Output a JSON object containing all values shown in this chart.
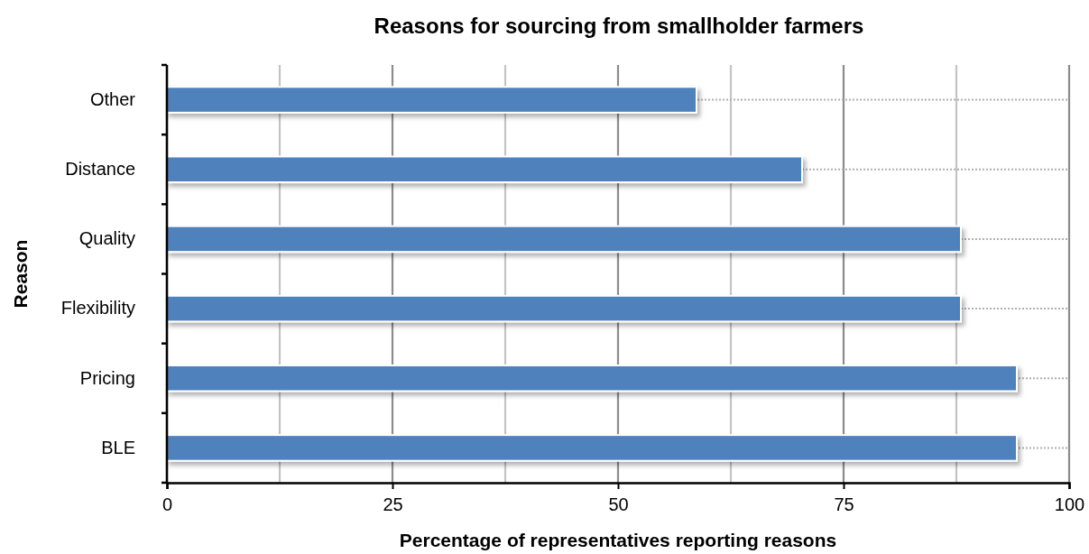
{
  "chart_data": {
    "type": "bar",
    "orientation": "horizontal",
    "title": "Reasons for sourcing from smallholder farmers",
    "xlabel": "Percentage of representatives reporting reasons",
    "ylabel": "Reason",
    "categories": [
      "Other",
      "Distance",
      "Quality",
      "Flexibility",
      "Pricing",
      "BLE"
    ],
    "values": [
      58.7,
      70.4,
      88.0,
      88.0,
      94.2,
      94.2
    ],
    "color": "#4f81bd",
    "xlim": [
      0,
      100
    ],
    "xticks": [
      0,
      {
        "value": 12.5,
        "label": null
      },
      25,
      {
        "value": 37.5,
        "label": null
      },
      50,
      {
        "value": 62.5,
        "label": null
      },
      75,
      {
        "value": 87.5,
        "label": null
      },
      100
    ],
    "grid": true
  }
}
